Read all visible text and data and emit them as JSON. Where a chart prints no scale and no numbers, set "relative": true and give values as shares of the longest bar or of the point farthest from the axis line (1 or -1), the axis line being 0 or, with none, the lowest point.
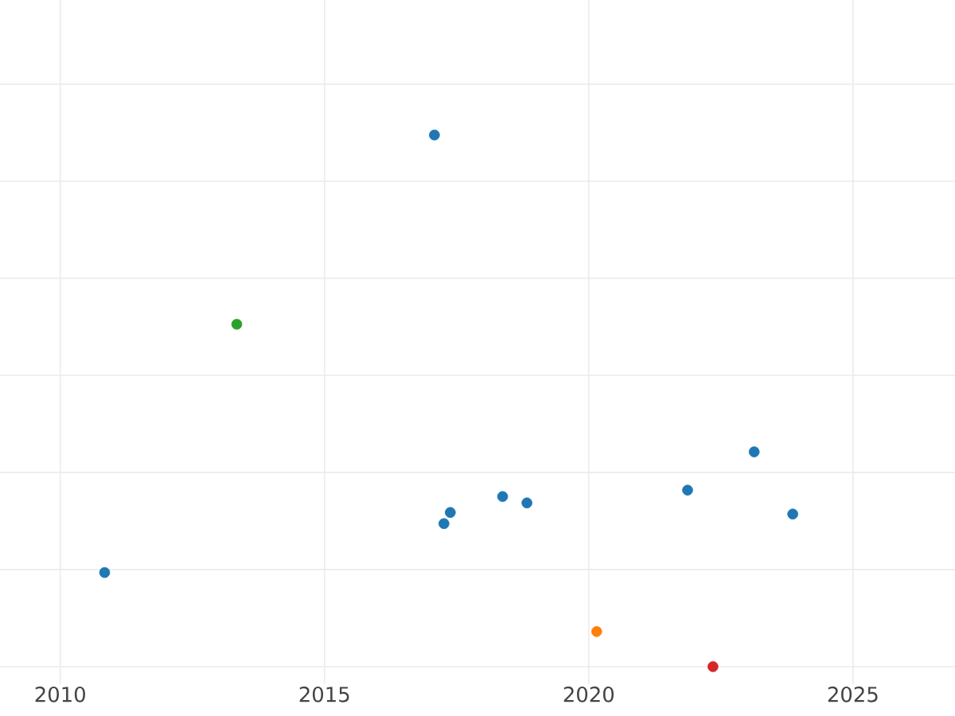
{
  "chart_data": {
    "type": "scatter",
    "relative": true,
    "x": [
      2010.84,
      2013.34,
      2017.08,
      2017.26,
      2017.38,
      2018.37,
      2018.83,
      2020.15,
      2021.87,
      2022.35,
      2023.13,
      2023.86
    ],
    "values": [
      0.177,
      0.644,
      1,
      0.269,
      0.29,
      0.32,
      0.308,
      0.066,
      0.332,
      0,
      0.404,
      0.287
    ],
    "colors": [
      "#1f77b4",
      "#2ca02c",
      "#1f77b4",
      "#1f77b4",
      "#1f77b4",
      "#1f77b4",
      "#1f77b4",
      "#ff7f0e",
      "#1f77b4",
      "#d62728",
      "#1f77b4",
      "#1f77b4"
    ],
    "xlim": [
      2008.86,
      2026.93
    ],
    "xticks": [
      2010,
      2015,
      2020,
      2025
    ],
    "grid": true,
    "tick_labels": "x",
    "marker": "circle",
    "legend": false
  }
}
